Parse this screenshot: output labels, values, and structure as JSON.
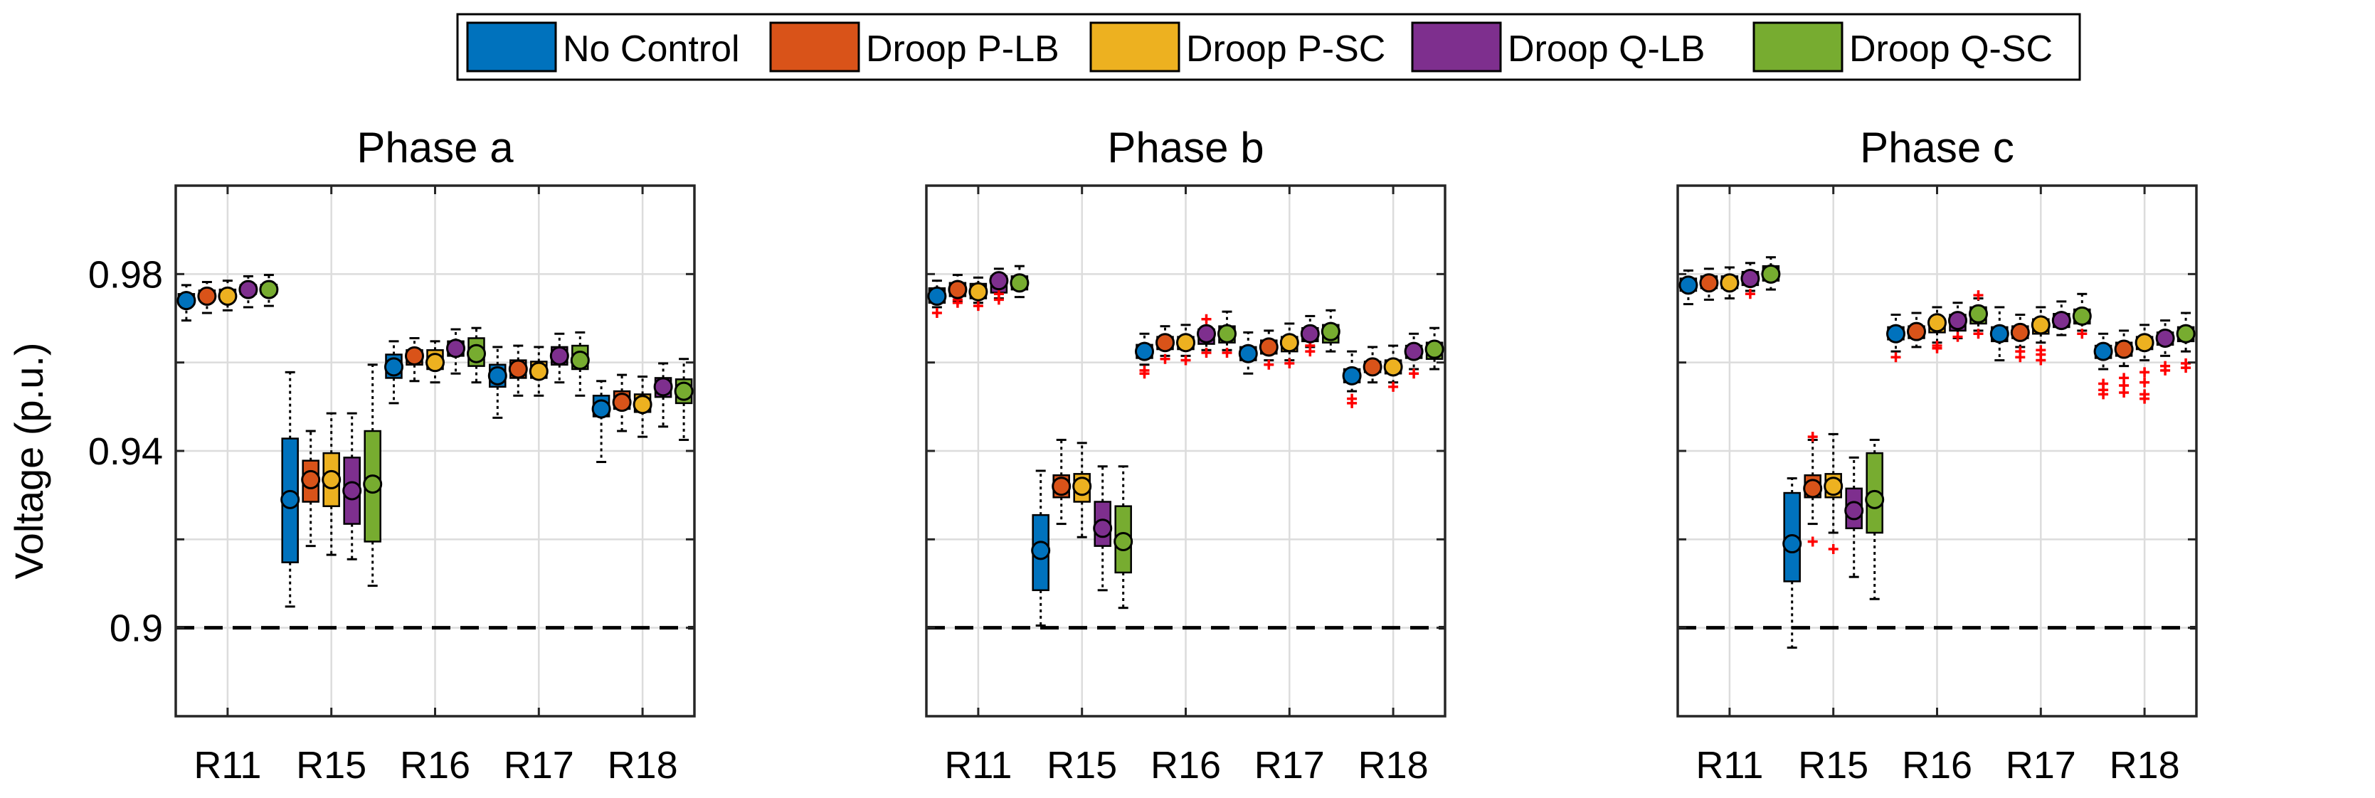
{
  "chart_data": {
    "type": "box",
    "ylabel": "Voltage (p.u.)",
    "ylim": [
      0.88,
      1.0
    ],
    "yticks": [
      0.9,
      0.94,
      0.98
    ],
    "ytick_labels": [
      "0.9",
      "0.94",
      "0.98"
    ],
    "grid": true,
    "reference_line": {
      "y": 0.9,
      "style": "dashed"
    },
    "legend": {
      "placement": "top-center",
      "entries": [
        {
          "label": "No Control",
          "color": "#0072BD"
        },
        {
          "label": "Droop P-LB",
          "color": "#D95319"
        },
        {
          "label": "Droop P-SC",
          "color": "#EDB120"
        },
        {
          "label": "Droop Q-LB",
          "color": "#7E2F8E"
        },
        {
          "label": "Droop Q-SC",
          "color": "#77AC30"
        }
      ]
    },
    "categories": [
      "R11",
      "R15",
      "R16",
      "R17",
      "R18"
    ],
    "outlier_color": "#FF0000",
    "panels": [
      {
        "title": "Phase a",
        "boxes": [
          [
            {
              "mean": 0.974,
              "q1": 0.9732,
              "q3": 0.9755,
              "wlo": 0.9695,
              "whi": 0.9775,
              "outliers": []
            },
            {
              "mean": 0.975,
              "q1": 0.9742,
              "q3": 0.9763,
              "wlo": 0.9712,
              "whi": 0.9782,
              "outliers": []
            },
            {
              "mean": 0.975,
              "q1": 0.9745,
              "q3": 0.9765,
              "wlo": 0.9718,
              "whi": 0.9785,
              "outliers": []
            },
            {
              "mean": 0.9765,
              "q1": 0.9755,
              "q3": 0.9775,
              "wlo": 0.9725,
              "whi": 0.9795,
              "outliers": []
            },
            {
              "mean": 0.9765,
              "q1": 0.9756,
              "q3": 0.9776,
              "wlo": 0.9728,
              "whi": 0.9798,
              "outliers": []
            }
          ],
          [
            {
              "mean": 0.929,
              "q1": 0.9148,
              "q3": 0.9428,
              "wlo": 0.9048,
              "whi": 0.9578,
              "outliers": []
            },
            {
              "mean": 0.9335,
              "q1": 0.9285,
              "q3": 0.9378,
              "wlo": 0.9185,
              "whi": 0.9445,
              "outliers": []
            },
            {
              "mean": 0.9335,
              "q1": 0.9275,
              "q3": 0.9395,
              "wlo": 0.9165,
              "whi": 0.9485,
              "outliers": []
            },
            {
              "mean": 0.931,
              "q1": 0.9235,
              "q3": 0.9385,
              "wlo": 0.9155,
              "whi": 0.9485,
              "outliers": []
            },
            {
              "mean": 0.9325,
              "q1": 0.9195,
              "q3": 0.9445,
              "wlo": 0.9095,
              "whi": 0.9595,
              "outliers": []
            }
          ],
          [
            {
              "mean": 0.959,
              "q1": 0.9565,
              "q3": 0.9618,
              "wlo": 0.9508,
              "whi": 0.9648,
              "outliers": []
            },
            {
              "mean": 0.9615,
              "q1": 0.9595,
              "q3": 0.9628,
              "wlo": 0.9558,
              "whi": 0.9655,
              "outliers": []
            },
            {
              "mean": 0.96,
              "q1": 0.9585,
              "q3": 0.9628,
              "wlo": 0.9555,
              "whi": 0.9648,
              "outliers": []
            },
            {
              "mean": 0.9632,
              "q1": 0.9615,
              "q3": 0.9648,
              "wlo": 0.9575,
              "whi": 0.9675,
              "outliers": []
            },
            {
              "mean": 0.962,
              "q1": 0.9592,
              "q3": 0.9655,
              "wlo": 0.9555,
              "whi": 0.9678,
              "outliers": []
            }
          ],
          [
            {
              "mean": 0.957,
              "q1": 0.9545,
              "q3": 0.9595,
              "wlo": 0.9475,
              "whi": 0.9635,
              "outliers": []
            },
            {
              "mean": 0.9585,
              "q1": 0.9565,
              "q3": 0.9605,
              "wlo": 0.9525,
              "whi": 0.9638,
              "outliers": []
            },
            {
              "mean": 0.958,
              "q1": 0.9565,
              "q3": 0.9602,
              "wlo": 0.9525,
              "whi": 0.9635,
              "outliers": []
            },
            {
              "mean": 0.9615,
              "q1": 0.9595,
              "q3": 0.9635,
              "wlo": 0.9555,
              "whi": 0.9665,
              "outliers": []
            },
            {
              "mean": 0.9605,
              "q1": 0.9585,
              "q3": 0.9638,
              "wlo": 0.9525,
              "whi": 0.9668,
              "outliers": []
            }
          ],
          [
            {
              "mean": 0.9495,
              "q1": 0.9478,
              "q3": 0.9525,
              "wlo": 0.9375,
              "whi": 0.9558,
              "outliers": []
            },
            {
              "mean": 0.951,
              "q1": 0.9495,
              "q3": 0.9535,
              "wlo": 0.9445,
              "whi": 0.9572,
              "outliers": []
            },
            {
              "mean": 0.9505,
              "q1": 0.9488,
              "q3": 0.9528,
              "wlo": 0.9432,
              "whi": 0.9568,
              "outliers": []
            },
            {
              "mean": 0.9545,
              "q1": 0.9522,
              "q3": 0.9565,
              "wlo": 0.9455,
              "whi": 0.9598,
              "outliers": []
            },
            {
              "mean": 0.9535,
              "q1": 0.9508,
              "q3": 0.9562,
              "wlo": 0.9425,
              "whi": 0.9608,
              "outliers": []
            }
          ]
        ]
      },
      {
        "title": "Phase b",
        "boxes": [
          [
            {
              "mean": 0.975,
              "q1": 0.9735,
              "q3": 0.9768,
              "wlo": 0.9725,
              "whi": 0.9785,
              "outliers": [
                0.9712
              ]
            },
            {
              "mean": 0.9765,
              "q1": 0.975,
              "q3": 0.978,
              "wlo": 0.9738,
              "whi": 0.9798,
              "outliers": [
                0.9742,
                0.9735
              ]
            },
            {
              "mean": 0.976,
              "q1": 0.9745,
              "q3": 0.9778,
              "wlo": 0.9735,
              "whi": 0.9792,
              "outliers": [
                0.9728
              ]
            },
            {
              "mean": 0.9785,
              "q1": 0.9758,
              "q3": 0.9795,
              "wlo": 0.9745,
              "whi": 0.9812,
              "outliers": [
                0.9742,
                0.9755
              ]
            },
            {
              "mean": 0.978,
              "q1": 0.9765,
              "q3": 0.9795,
              "wlo": 0.9748,
              "whi": 0.9818,
              "outliers": []
            }
          ],
          [
            {
              "mean": 0.9175,
              "q1": 0.9085,
              "q3": 0.9255,
              "wlo": 0.9005,
              "whi": 0.9355,
              "outliers": []
            },
            {
              "mean": 0.932,
              "q1": 0.9295,
              "q3": 0.9345,
              "wlo": 0.9235,
              "whi": 0.9425,
              "outliers": []
            },
            {
              "mean": 0.932,
              "q1": 0.9285,
              "q3": 0.9348,
              "wlo": 0.9205,
              "whi": 0.9418,
              "outliers": []
            },
            {
              "mean": 0.9225,
              "q1": 0.9185,
              "q3": 0.9285,
              "wlo": 0.9085,
              "whi": 0.9365,
              "outliers": []
            },
            {
              "mean": 0.9195,
              "q1": 0.9125,
              "q3": 0.9275,
              "wlo": 0.9045,
              "whi": 0.9365,
              "outliers": []
            }
          ],
          [
            {
              "mean": 0.9625,
              "q1": 0.961,
              "q3": 0.964,
              "wlo": 0.9595,
              "whi": 0.9665,
              "outliers": [
                0.9582,
                0.9575
              ]
            },
            {
              "mean": 0.9645,
              "q1": 0.963,
              "q3": 0.9658,
              "wlo": 0.9615,
              "whi": 0.9682,
              "outliers": [
                0.9608
              ]
            },
            {
              "mean": 0.9645,
              "q1": 0.963,
              "q3": 0.9658,
              "wlo": 0.9615,
              "whi": 0.9685,
              "outliers": [
                0.9605
              ]
            },
            {
              "mean": 0.9665,
              "q1": 0.9642,
              "q3": 0.9675,
              "wlo": 0.9628,
              "whi": 0.9698,
              "outliers": [
                0.9622,
                0.9698
              ]
            },
            {
              "mean": 0.9665,
              "q1": 0.9645,
              "q3": 0.9682,
              "wlo": 0.9628,
              "whi": 0.9715,
              "outliers": [
                0.9622
              ]
            }
          ],
          [
            {
              "mean": 0.962,
              "q1": 0.9605,
              "q3": 0.9635,
              "wlo": 0.9575,
              "whi": 0.9668,
              "outliers": []
            },
            {
              "mean": 0.9635,
              "q1": 0.962,
              "q3": 0.965,
              "wlo": 0.9605,
              "whi": 0.9672,
              "outliers": [
                0.9595
              ]
            },
            {
              "mean": 0.9645,
              "q1": 0.9625,
              "q3": 0.9658,
              "wlo": 0.9605,
              "whi": 0.9688,
              "outliers": [
                0.9598
              ]
            },
            {
              "mean": 0.9665,
              "q1": 0.9648,
              "q3": 0.9678,
              "wlo": 0.9635,
              "whi": 0.9705,
              "outliers": [
                0.9625,
                0.9638
              ]
            },
            {
              "mean": 0.967,
              "q1": 0.9645,
              "q3": 0.9685,
              "wlo": 0.9625,
              "whi": 0.9718,
              "outliers": []
            }
          ],
          [
            {
              "mean": 0.957,
              "q1": 0.9555,
              "q3": 0.9585,
              "wlo": 0.9535,
              "whi": 0.9625,
              "outliers": [
                0.9518,
                0.9508
              ]
            },
            {
              "mean": 0.959,
              "q1": 0.9578,
              "q3": 0.9602,
              "wlo": 0.9555,
              "whi": 0.9635,
              "outliers": []
            },
            {
              "mean": 0.959,
              "q1": 0.9575,
              "q3": 0.9605,
              "wlo": 0.9555,
              "whi": 0.9638,
              "outliers": [
                0.9545
              ]
            },
            {
              "mean": 0.9625,
              "q1": 0.961,
              "q3": 0.9638,
              "wlo": 0.9585,
              "whi": 0.9665,
              "outliers": [
                0.9575
              ]
            },
            {
              "mean": 0.963,
              "q1": 0.9608,
              "q3": 0.9645,
              "wlo": 0.9585,
              "whi": 0.9678,
              "outliers": []
            }
          ]
        ]
      },
      {
        "title": "Phase c",
        "boxes": [
          [
            {
              "mean": 0.9775,
              "q1": 0.9762,
              "q3": 0.979,
              "wlo": 0.9732,
              "whi": 0.9808,
              "outliers": []
            },
            {
              "mean": 0.978,
              "q1": 0.9768,
              "q3": 0.9795,
              "wlo": 0.9742,
              "whi": 0.9812,
              "outliers": []
            },
            {
              "mean": 0.978,
              "q1": 0.9768,
              "q3": 0.9795,
              "wlo": 0.9745,
              "whi": 0.9815,
              "outliers": []
            },
            {
              "mean": 0.979,
              "q1": 0.9775,
              "q3": 0.9805,
              "wlo": 0.9762,
              "whi": 0.9825,
              "outliers": [
                0.9755
              ]
            },
            {
              "mean": 0.98,
              "q1": 0.9785,
              "q3": 0.9818,
              "wlo": 0.9765,
              "whi": 0.9838,
              "outliers": []
            }
          ],
          [
            {
              "mean": 0.919,
              "q1": 0.9105,
              "q3": 0.9305,
              "wlo": 0.8955,
              "whi": 0.9338,
              "outliers": []
            },
            {
              "mean": 0.9315,
              "q1": 0.9295,
              "q3": 0.9345,
              "wlo": 0.9235,
              "whi": 0.9425,
              "outliers": [
                0.9432,
                0.9195
              ]
            },
            {
              "mean": 0.932,
              "q1": 0.9295,
              "q3": 0.9348,
              "wlo": 0.9215,
              "whi": 0.9438,
              "outliers": [
                0.9178
              ]
            },
            {
              "mean": 0.9265,
              "q1": 0.9225,
              "q3": 0.9315,
              "wlo": 0.9115,
              "whi": 0.9385,
              "outliers": []
            },
            {
              "mean": 0.929,
              "q1": 0.9215,
              "q3": 0.9395,
              "wlo": 0.9065,
              "whi": 0.9425,
              "outliers": []
            }
          ],
          [
            {
              "mean": 0.9665,
              "q1": 0.9652,
              "q3": 0.968,
              "wlo": 0.9625,
              "whi": 0.9708,
              "outliers": [
                0.9612
              ]
            },
            {
              "mean": 0.967,
              "q1": 0.9655,
              "q3": 0.9682,
              "wlo": 0.9635,
              "whi": 0.9712,
              "outliers": []
            },
            {
              "mean": 0.969,
              "q1": 0.9668,
              "q3": 0.9698,
              "wlo": 0.9645,
              "whi": 0.9725,
              "outliers": [
                0.9632,
                0.9638
              ]
            },
            {
              "mean": 0.9695,
              "q1": 0.9672,
              "q3": 0.9708,
              "wlo": 0.9655,
              "whi": 0.9735,
              "outliers": [
                0.9658
              ]
            },
            {
              "mean": 0.971,
              "q1": 0.9688,
              "q3": 0.9725,
              "wlo": 0.9672,
              "whi": 0.9745,
              "outliers": [
                0.9752,
                0.9665
              ]
            }
          ],
          [
            {
              "mean": 0.9665,
              "q1": 0.9648,
              "q3": 0.968,
              "wlo": 0.9605,
              "whi": 0.9725,
              "outliers": []
            },
            {
              "mean": 0.9668,
              "q1": 0.9655,
              "q3": 0.9682,
              "wlo": 0.9635,
              "whi": 0.9708,
              "outliers": [
                0.9612,
                0.9625
              ]
            },
            {
              "mean": 0.9685,
              "q1": 0.9665,
              "q3": 0.9698,
              "wlo": 0.9645,
              "whi": 0.9725,
              "outliers": [
                0.9605,
                0.9618,
                0.9628
              ]
            },
            {
              "mean": 0.9695,
              "q1": 0.968,
              "q3": 0.971,
              "wlo": 0.9662,
              "whi": 0.9738,
              "outliers": []
            },
            {
              "mean": 0.9705,
              "q1": 0.9688,
              "q3": 0.972,
              "wlo": 0.9672,
              "whi": 0.9755,
              "outliers": [
                0.9665
              ]
            }
          ],
          [
            {
              "mean": 0.9625,
              "q1": 0.961,
              "q3": 0.9638,
              "wlo": 0.9585,
              "whi": 0.9665,
              "outliers": [
                0.9552,
                0.9538,
                0.9528
              ]
            },
            {
              "mean": 0.963,
              "q1": 0.9615,
              "q3": 0.9645,
              "wlo": 0.9592,
              "whi": 0.9672,
              "outliers": [
                0.9548,
                0.9565,
                0.9532
              ]
            },
            {
              "mean": 0.9645,
              "q1": 0.963,
              "q3": 0.9658,
              "wlo": 0.9605,
              "whi": 0.9685,
              "outliers": [
                0.9578,
                0.9555,
                0.9528,
                0.9518
              ]
            },
            {
              "mean": 0.9655,
              "q1": 0.964,
              "q3": 0.9668,
              "wlo": 0.9615,
              "whi": 0.9695,
              "outliers": [
                0.9592,
                0.9582
              ]
            },
            {
              "mean": 0.9665,
              "q1": 0.9648,
              "q3": 0.968,
              "wlo": 0.9625,
              "whi": 0.9712,
              "outliers": [
                0.9598,
                0.9588
              ]
            }
          ]
        ]
      }
    ]
  }
}
